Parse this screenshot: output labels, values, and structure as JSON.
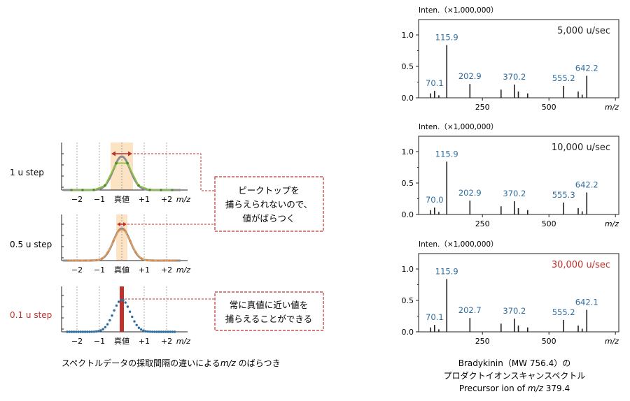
{
  "left": {
    "rows": [
      {
        "label": "1 u step",
        "label_color": "#231f20"
      },
      {
        "label": "0.5 u step",
        "label_color": "#231f20"
      },
      {
        "label": "0.1 u step",
        "label_color": "#c0312b"
      }
    ],
    "xticks": [
      "−2",
      "−1",
      "真値",
      "+1",
      "+2"
    ],
    "xunit": "m/z",
    "callout_top": [
      "ピークトップを",
      "捕らえられないので、",
      "値がばらつく"
    ],
    "callout_bottom": [
      "常に真値に近い値を",
      "捕らえることができる"
    ],
    "caption_pre": "スペクトルデータの採取間隔の違いによる",
    "caption_mz": "m/z",
    "caption_post": " のばらつき",
    "colors": {
      "gray": "#8f8f8f",
      "green": "#8cc63f",
      "orange": "#f0a35e",
      "blue": "#2f6d9e",
      "red": "#c0312b",
      "highlight": "#fbe3c4"
    }
  },
  "right": {
    "ylabel": "Inten.（×1,000,000）",
    "yticks": [
      "0.0",
      "0.5",
      "1.0"
    ],
    "xticks": [
      "250",
      "500"
    ],
    "xunit": "m/z",
    "panels": [
      {
        "speed": "5,000 u/sec",
        "speed_color": "#231f20",
        "labels": [
          {
            "mz": 70.1,
            "text": "70.1"
          },
          {
            "mz": 115.9,
            "text": "115.9"
          },
          {
            "mz": 202.9,
            "text": "202.9"
          },
          {
            "mz": 370.2,
            "text": "370.2"
          },
          {
            "mz": 555.2,
            "text": "555.2"
          },
          {
            "mz": 642.2,
            "text": "642.2"
          }
        ]
      },
      {
        "speed": "10,000 u/sec",
        "speed_color": "#231f20",
        "labels": [
          {
            "mz": 70.0,
            "text": "70.0"
          },
          {
            "mz": 115.9,
            "text": "115.9"
          },
          {
            "mz": 202.9,
            "text": "202.9"
          },
          {
            "mz": 370.2,
            "text": "370.2"
          },
          {
            "mz": 555.3,
            "text": "555.3"
          },
          {
            "mz": 642.2,
            "text": "642.2"
          }
        ]
      },
      {
        "speed": "30,000 u/sec",
        "speed_color": "#c0312b",
        "labels": [
          {
            "mz": 70.1,
            "text": "70.1"
          },
          {
            "mz": 115.9,
            "text": "115.9"
          },
          {
            "mz": 202.7,
            "text": "202.7"
          },
          {
            "mz": 370.2,
            "text": "370.2"
          },
          {
            "mz": 555.2,
            "text": "555.2"
          },
          {
            "mz": 642.1,
            "text": "642.1"
          }
        ]
      }
    ],
    "peaks": [
      {
        "mz": 55,
        "i": 0.07
      },
      {
        "mz": 70,
        "i": 0.11
      },
      {
        "mz": 86,
        "i": 0.04
      },
      {
        "mz": 115.9,
        "i": 0.84
      },
      {
        "mz": 202.9,
        "i": 0.22
      },
      {
        "mz": 320,
        "i": 0.13
      },
      {
        "mz": 370.2,
        "i": 0.21
      },
      {
        "mz": 385,
        "i": 0.1
      },
      {
        "mz": 420,
        "i": 0.07
      },
      {
        "mz": 555.2,
        "i": 0.19
      },
      {
        "mz": 610,
        "i": 0.1
      },
      {
        "mz": 625,
        "i": 0.05
      },
      {
        "mz": 642.2,
        "i": 0.35
      }
    ],
    "caption": [
      "Bradykinin（MW 756.4）の",
      "プロダクトイオンスキャンスペクトル"
    ],
    "caption3_pre": "Precursor ion of ",
    "caption3_mz": "m/z",
    "caption3_post": " 379.4",
    "label_color": "#2f6d9e"
  }
}
